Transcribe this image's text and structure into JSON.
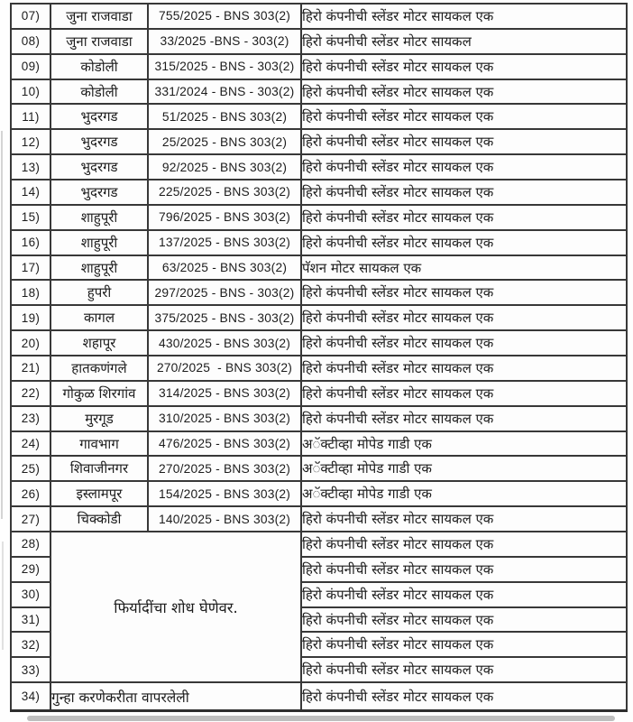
{
  "document": {
    "type": "seized-property-register-table",
    "language": "Marathi",
    "text_color": "#1c1c1c",
    "border_color": "#383838",
    "background_color": "#fdfdfd"
  },
  "table": {
    "rows": [
      {
        "num": "07)",
        "station": "जुना राजवाडा",
        "case": "755/2025 - BNS 303(2)",
        "item": "हिरो कंपनीची स्लेंडर मोटर सायकल एक"
      },
      {
        "num": "08)",
        "station": "जुना राजवाडा",
        "case": "33/2025 -BNS - 303(2)",
        "item": "हिरो कंपनीची स्लेंडर मोटर सायकल"
      },
      {
        "num": "09)",
        "station": "कोडोली",
        "case": "315/2025 - BNS - 303(2)",
        "item": "हिरो कंपनीची स्लेंडर मोटर सायकल एक"
      },
      {
        "num": "10)",
        "station": "कोडोली",
        "case": "331/2024 - BNS - 303(2)",
        "item": "हिरो कंपनीची स्लेंडर मोटर सायकल एक"
      },
      {
        "num": "11)",
        "station": "भुदरगड",
        "case": "51/2025 - BNS 303(2)",
        "item": "हिरो कंपनीची स्लेंडर मोटर सायकल एक"
      },
      {
        "num": "12)",
        "station": "भुदरगड",
        "case": "25/2025 - BNS 303(2)",
        "item": "हिरो कंपनीची स्लेंडर मोटर सायकल एक"
      },
      {
        "num": "13)",
        "station": "भुदरगड",
        "case": "92/2025 - BNS 303(2)",
        "item": "हिरो कंपनीची स्लेंडर मोटर सायकल एक"
      },
      {
        "num": "14)",
        "station": "भुदरगड",
        "case": "225/2025 - BNS 303(2)",
        "item": "हिरो कंपनीची स्लेंडर मोटर सायकल एक"
      },
      {
        "num": "15)",
        "station": "शाहुपूरी",
        "case": "796/2025 - BNS 303(2)",
        "item": "हिरो कंपनीची स्लेंडर मोटर सायकल एक"
      },
      {
        "num": "16)",
        "station": "शाहुपूरी",
        "case": "137/2025 - BNS 303(2)",
        "item": "हिरो कंपनीची स्लेंडर मोटर सायकल एक"
      },
      {
        "num": "17)",
        "station": "शाहुपूरी",
        "case": "63/2025 - BNS 303(2)",
        "item": "पॅशन मोटर सायकल एक"
      },
      {
        "num": "18)",
        "station": "हुपरी",
        "case": "297/2025 - BNS - 303(2)",
        "item": "हिरो कंपनीची स्लेंडर मोटर सायकल एक"
      },
      {
        "num": "19)",
        "station": "कागल",
        "case": "375/2025 - BNS - 303(2)",
        "item": "हिरो कंपनीची स्लेंडर मोटर सायकल एक"
      },
      {
        "num": "20)",
        "station": "शहापूर",
        "case": "430/2025 - BNS 303(2)",
        "item": "हिरो कंपनीची स्लेंडर मोटर सायकल एक"
      },
      {
        "num": "21)",
        "station": "हातकणंगले",
        "case": "270/2025  - BNS 303(2)",
        "item": "हिरो कंपनीची स्लेंडर मोटर सायकल एक"
      },
      {
        "num": "22)",
        "station": "गोकुळ शिरगांव",
        "case": "314/2025 - BNS 303(2)",
        "item": "हिरो कंपनीची स्लेंडर मोटर सायकल एक"
      },
      {
        "num": "23)",
        "station": "मुरगूड",
        "case": "310/2025 - BNS 303(2)",
        "item": "हिरो कंपनीची स्लेंडर मोटर सायकल एक"
      },
      {
        "num": "24)",
        "station": "गावभाग",
        "case": "476/2025 - BNS 303(2)",
        "item": "अॅक्टीव्हा मोपेड गाडी एक"
      },
      {
        "num": "25)",
        "station": "शिवाजीनगर",
        "case": "270/2025 - BNS 303(2)",
        "item": "अॅक्टीव्हा मोपेड गाडी एक"
      },
      {
        "num": "26)",
        "station": "इस्लामपूर",
        "case": "154/2025 - BNS 303(2)",
        "item": "अॅक्टीव्हा मोपेड गाडी एक"
      },
      {
        "num": "27)",
        "station": "चिक्कोडी",
        "case": "140/2025 - BNS 303(2)",
        "item": "हिरो कंपनीची स्लेंडर मोटर सायकल एक"
      }
    ],
    "merged_block": {
      "nums": [
        "28)",
        "29)",
        "30)",
        "31)",
        "32)",
        "33)"
      ],
      "note": "फिर्यादींचा शोध घेणेवर.",
      "items": [
        "हिरो कंपनीची स्लेंडर मोटर सायकल एक",
        "हिरो कंपनीची स्लेंडर मोटर सायकल एक",
        "हिरो कंपनीची स्लेंडर मोटर सायकल एक",
        "हिरो कंपनीची स्लेंडर मोटर सायकल एक",
        "हिरो कंपनीची स्लेंडर मोटर सायकल एक",
        "हिरो कंपनीची स्लेंडर मोटर सायकल एक"
      ]
    },
    "last_row": {
      "num": "34)",
      "note": "गुन्हा करणेकरीता वापरलेली",
      "item": "हिरो कंपनीची स्लेंडर मोटर सायकल एक"
    }
  }
}
